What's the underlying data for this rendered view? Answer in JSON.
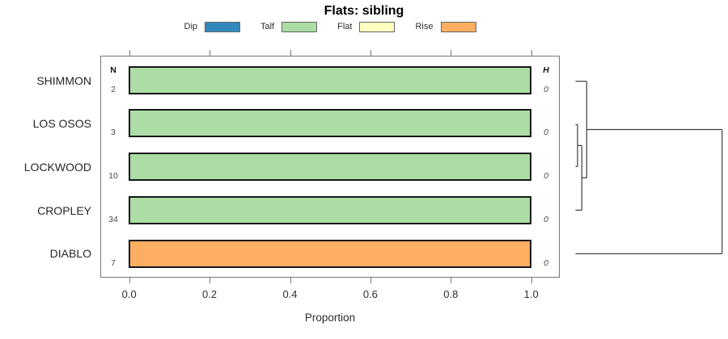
{
  "title": "Flats: sibling",
  "legend": [
    {
      "label": "Dip",
      "color": "#3288bd"
    },
    {
      "label": "Talf",
      "color": "#abdda4"
    },
    {
      "label": "Flat",
      "color": "#ffffbf"
    },
    {
      "label": "Rise",
      "color": "#fdae61"
    }
  ],
  "columns": {
    "n_header": "N",
    "h_header": "H"
  },
  "xaxis": {
    "label": "Proportion",
    "ticks": [
      "0.0",
      "0.2",
      "0.4",
      "0.6",
      "0.8",
      "1.0"
    ]
  },
  "chart_data": {
    "type": "bar",
    "orientation": "horizontal",
    "title": "Flats: sibling",
    "xlabel": "Proportion",
    "xlim": [
      0,
      1
    ],
    "grid": false,
    "legend_position": "top",
    "categories": [
      "SHIMMON",
      "LOS OSOS",
      "LOCKWOOD",
      "CROPLEY",
      "DIABLO"
    ],
    "series": [
      {
        "name": "Dip",
        "color": "#3288bd",
        "values": [
          0,
          0,
          0,
          0,
          0
        ]
      },
      {
        "name": "Talf",
        "color": "#abdda4",
        "values": [
          1.0,
          1.0,
          1.0,
          1.0,
          0
        ]
      },
      {
        "name": "Flat",
        "color": "#ffffbf",
        "values": [
          0,
          0,
          0,
          0,
          0
        ]
      },
      {
        "name": "Rise",
        "color": "#fdae61",
        "values": [
          0,
          0,
          0,
          0,
          1.0
        ]
      }
    ],
    "n_values": [
      "2",
      "3",
      "10",
      "34",
      "7"
    ],
    "h_values": [
      "0",
      "0",
      "0",
      "0",
      "0"
    ],
    "dendrogram": {
      "structure": "((SHIMMON,((LOS OSOS,LOCKWOOD),CROPLEY)),DIABLO)",
      "merge_heights": [
        0,
        0,
        0,
        1
      ]
    }
  }
}
